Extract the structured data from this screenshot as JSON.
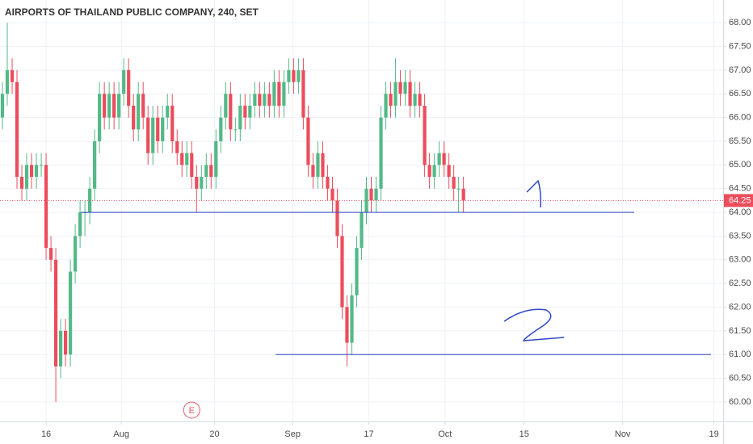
{
  "chart_data": {
    "type": "candlestick",
    "title": "AIRPORTS OF THAILAND PUBLIC COMPANY, 240, SET",
    "open": [
      66.0,
      66.5,
      67.0,
      66.75,
      64.75,
      64.5,
      65.0,
      64.75,
      65.0,
      65.0,
      63.25,
      63.0,
      60.75,
      61.5,
      61.0,
      62.75,
      63.5,
      64.0,
      64.0,
      64.5,
      65.5,
      66.5,
      66.0,
      66.5,
      66.0,
      66.5,
      67.0,
      66.25,
      65.75,
      66.5,
      66.0,
      65.25,
      66.0,
      65.5,
      66.0,
      66.25,
      65.5,
      65.25,
      65.0,
      65.25,
      64.75,
      64.5,
      64.75,
      65.0,
      64.75,
      65.5,
      66.0,
      66.5,
      65.75,
      65.75,
      66.25,
      66.0,
      66.25,
      66.5,
      66.25,
      66.5,
      66.25,
      66.75,
      66.25,
      66.75,
      67.0,
      66.75,
      67.0,
      66.0,
      65.0,
      64.75,
      65.25,
      64.75,
      64.5,
      64.25,
      63.5,
      62.0,
      61.25,
      62.25,
      63.25,
      64.0,
      64.5,
      64.25,
      64.5,
      66.0,
      66.5,
      66.25,
      66.75,
      66.5,
      66.75,
      66.25,
      66.5,
      66.25,
      65.0,
      64.75,
      65.0,
      65.25,
      65.0,
      64.75,
      64.5,
      64.5
    ],
    "high": [
      66.75,
      68.0,
      67.25,
      67.0,
      65.0,
      65.25,
      65.25,
      65.25,
      65.25,
      65.25,
      63.5,
      63.25,
      61.75,
      61.75,
      63.0,
      63.75,
      64.25,
      64.25,
      64.75,
      65.75,
      66.75,
      66.75,
      66.75,
      66.75,
      66.75,
      67.25,
      67.25,
      66.5,
      66.75,
      66.75,
      66.25,
      66.25,
      66.25,
      66.25,
      66.5,
      66.5,
      65.75,
      65.5,
      65.5,
      65.5,
      65.0,
      65.0,
      65.25,
      65.25,
      65.75,
      66.25,
      66.75,
      66.75,
      66.0,
      66.5,
      66.5,
      66.5,
      66.75,
      66.75,
      66.75,
      66.75,
      67.0,
      67.0,
      67.0,
      67.25,
      67.25,
      67.25,
      67.25,
      66.25,
      65.25,
      65.5,
      65.5,
      65.0,
      64.75,
      64.5,
      63.75,
      62.25,
      62.5,
      63.5,
      64.25,
      64.75,
      64.75,
      64.75,
      66.25,
      66.75,
      66.75,
      67.25,
      67.0,
      67.0,
      67.0,
      66.75,
      66.75,
      66.5,
      65.25,
      65.25,
      65.5,
      65.5,
      65.25,
      65.0,
      64.75,
      64.75
    ],
    "low": [
      65.75,
      66.25,
      66.5,
      64.5,
      64.25,
      64.25,
      64.5,
      64.5,
      64.75,
      63.0,
      62.75,
      60.0,
      60.5,
      60.75,
      60.75,
      62.5,
      63.25,
      63.5,
      63.75,
      64.25,
      65.25,
      65.75,
      65.75,
      65.75,
      65.75,
      66.25,
      66.0,
      65.5,
      65.5,
      65.75,
      65.0,
      65.0,
      65.25,
      65.25,
      65.75,
      65.25,
      65.0,
      64.75,
      64.75,
      64.5,
      64.0,
      64.25,
      64.5,
      64.5,
      64.5,
      65.25,
      65.75,
      65.5,
      65.5,
      65.5,
      65.75,
      65.75,
      66.0,
      66.0,
      66.0,
      66.0,
      66.0,
      66.0,
      66.0,
      66.5,
      66.5,
      66.5,
      65.75,
      64.75,
      64.5,
      64.5,
      64.5,
      64.25,
      64.0,
      63.25,
      61.75,
      60.75,
      61.0,
      62.0,
      63.0,
      63.75,
      64.0,
      64.0,
      64.25,
      65.75,
      66.0,
      66.0,
      66.25,
      66.25,
      66.0,
      66.0,
      66.0,
      64.75,
      64.5,
      64.5,
      64.75,
      64.75,
      64.5,
      64.25,
      64.0,
      64.0
    ],
    "close": [
      66.5,
      67.0,
      66.75,
      64.75,
      64.5,
      65.0,
      64.75,
      65.0,
      65.0,
      63.25,
      63.0,
      60.75,
      61.5,
      61.0,
      62.75,
      63.5,
      64.0,
      64.0,
      64.5,
      65.5,
      66.5,
      66.0,
      66.5,
      66.0,
      66.5,
      67.0,
      66.25,
      65.75,
      66.5,
      66.0,
      65.25,
      66.0,
      65.5,
      66.0,
      66.25,
      65.5,
      65.25,
      65.0,
      65.25,
      64.75,
      64.5,
      64.75,
      65.0,
      64.75,
      65.5,
      66.0,
      66.5,
      65.75,
      65.75,
      66.25,
      66.0,
      66.25,
      66.5,
      66.25,
      66.5,
      66.25,
      66.75,
      66.25,
      66.75,
      67.0,
      66.75,
      67.0,
      66.0,
      65.0,
      64.75,
      65.25,
      64.75,
      64.5,
      64.25,
      63.5,
      62.0,
      61.25,
      62.25,
      63.25,
      64.0,
      64.5,
      64.25,
      64.5,
      66.0,
      66.5,
      66.25,
      66.75,
      66.5,
      66.75,
      66.25,
      66.5,
      66.25,
      65.0,
      64.75,
      65.0,
      65.25,
      65.0,
      64.75,
      64.5,
      64.5,
      64.25
    ],
    "up_color": "#53b987",
    "down_color": "#eb4d5c",
    "xlim": [
      -0.5,
      148.5
    ],
    "xticks": [
      {
        "value": 9.0,
        "label": "16"
      },
      {
        "value": 24.5,
        "label": "Aug"
      },
      {
        "value": 43.7,
        "label": "20"
      },
      {
        "value": 59.8,
        "label": "Sep"
      },
      {
        "value": 75.5,
        "label": "17"
      },
      {
        "value": 91.2,
        "label": "Oct"
      },
      {
        "value": 107.5,
        "label": "15"
      },
      {
        "value": 127.8,
        "label": "Nov"
      },
      {
        "value": 146.6,
        "label": "19"
      }
    ],
    "ylim": [
      59.59,
      68.48
    ],
    "yticks": [
      {
        "value": 60,
        "label": "60.00"
      },
      {
        "value": 60.5,
        "label": "60.50"
      },
      {
        "value": 61,
        "label": "61.00"
      },
      {
        "value": 61.5,
        "label": "61.50"
      },
      {
        "value": 62,
        "label": "62.00"
      },
      {
        "value": 62.5,
        "label": "62.50"
      },
      {
        "value": 63,
        "label": "63.00"
      },
      {
        "value": 63.5,
        "label": "63.50"
      },
      {
        "value": 64,
        "label": "64.00"
      },
      {
        "value": 64.5,
        "label": "64.50"
      },
      {
        "value": 65,
        "label": "65.00"
      },
      {
        "value": 65.5,
        "label": "65.50"
      },
      {
        "value": 66,
        "label": "66.00"
      },
      {
        "value": 66.5,
        "label": "66.50"
      },
      {
        "value": 67,
        "label": "67.00"
      },
      {
        "value": 67.5,
        "label": "67.50"
      },
      {
        "value": 68,
        "label": "68.00"
      }
    ],
    "grid": true,
    "last_price": {
      "value": 64.25,
      "label": "64.25",
      "color": "#eb4d5c"
    },
    "hlines": [
      {
        "value": 64.0,
        "x": [
          16.15,
          130.2
        ],
        "color": "#3a4fc4"
      },
      {
        "value": 61.0,
        "x": [
          56.3,
          146.0
        ],
        "color": "#3a4fc4"
      }
    ],
    "event_marker": {
      "label": "E",
      "x": 39,
      "color": "#e05a67"
    }
  }
}
